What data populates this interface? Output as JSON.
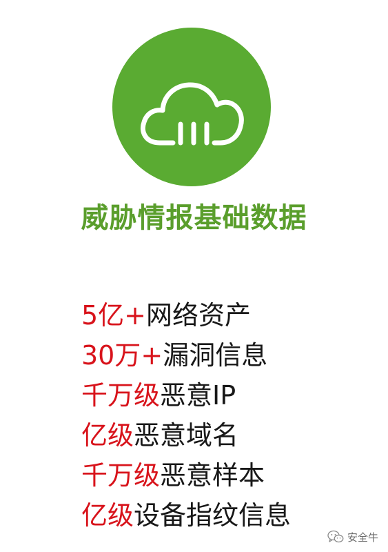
{
  "colors": {
    "badge_green": "#5aab32",
    "heading_green": "#5a9e2c",
    "quantity_red": "#d8131b",
    "text_dark": "#181818"
  },
  "badge": {
    "icon": "cloud-icon"
  },
  "heading": "威胁情报基础数据",
  "stats": [
    {
      "quantity": "5亿+",
      "label": "网络资产"
    },
    {
      "quantity": "30万+",
      "label": "漏洞信息"
    },
    {
      "quantity": "千万级",
      "label": "恶意IP"
    },
    {
      "quantity": "亿级",
      "label": "恶意域名"
    },
    {
      "quantity": "千万级",
      "label": "恶意样本"
    },
    {
      "quantity": "亿级",
      "label": "设备指纹信息"
    }
  ],
  "watermark": {
    "icon": "wechat-icon",
    "text": "安全牛"
  }
}
